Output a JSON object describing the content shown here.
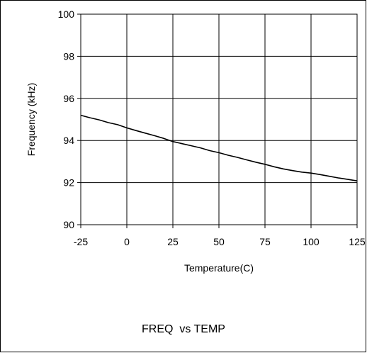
{
  "chart_data": {
    "type": "line",
    "title": "FREQ  vs TEMP",
    "xlabel": "Temperature(C)",
    "ylabel": "Frequency (kHz)",
    "xlim": [
      -25,
      125
    ],
    "ylim": [
      90,
      100
    ],
    "x_ticks": [
      "-25",
      "0",
      "25",
      "50",
      "75",
      "100",
      "125"
    ],
    "y_ticks": [
      "90",
      "92",
      "94",
      "96",
      "98",
      "100"
    ],
    "grid": true,
    "legend": "none",
    "series": [
      {
        "color": "#000000",
        "x": [
          -25,
          -20,
          -15,
          -10,
          -5,
          0,
          5,
          10,
          15,
          20,
          25,
          30,
          35,
          40,
          45,
          50,
          55,
          60,
          65,
          70,
          75,
          80,
          85,
          90,
          95,
          100,
          105,
          110,
          115,
          120,
          125
        ],
        "y": [
          95.2,
          95.08,
          94.98,
          94.85,
          94.75,
          94.6,
          94.47,
          94.35,
          94.23,
          94.1,
          93.95,
          93.85,
          93.75,
          93.65,
          93.52,
          93.42,
          93.3,
          93.2,
          93.08,
          92.97,
          92.87,
          92.75,
          92.65,
          92.57,
          92.5,
          92.45,
          92.38,
          92.3,
          92.22,
          92.15,
          92.08
        ]
      }
    ]
  }
}
